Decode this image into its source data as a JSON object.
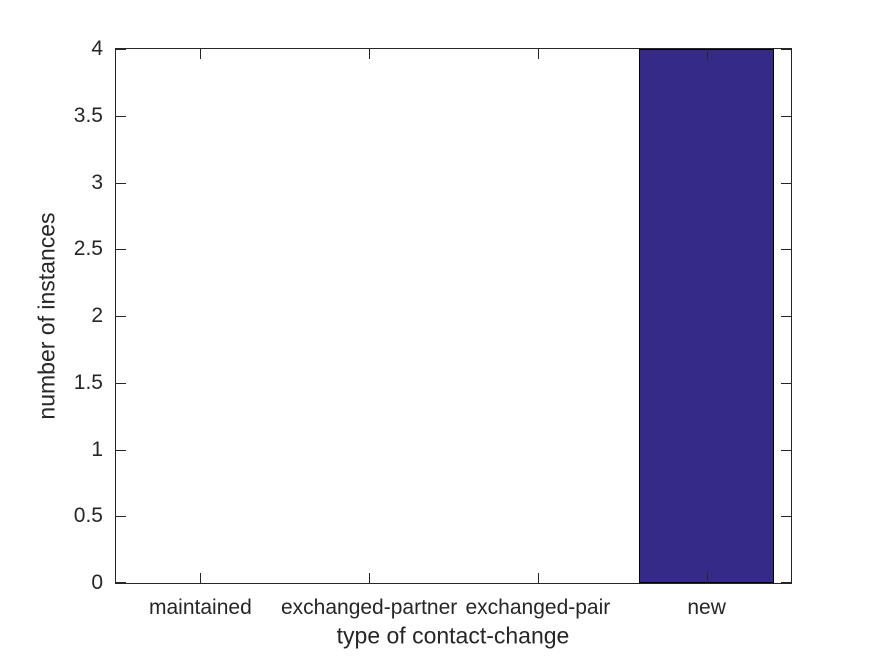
{
  "chart_data": {
    "type": "bar",
    "categories": [
      "maintained",
      "exchanged-partner",
      "exchanged-pair",
      "new"
    ],
    "values": [
      0,
      0,
      0,
      4
    ],
    "title": "",
    "xlabel": "type of contact-change",
    "ylabel": "number of instances",
    "ylim": [
      0,
      4
    ],
    "yticks": [
      0,
      0.5,
      1,
      1.5,
      2,
      2.5,
      3,
      3.5,
      4
    ],
    "ytick_labels": [
      "0",
      "0.5",
      "1",
      "1.5",
      "2",
      "2.5",
      "3",
      "3.5",
      "4"
    ],
    "bar_width_fraction": 0.8,
    "bar_color": "#352A87",
    "bar_edge_color": "#000000",
    "axis_color": "#262626",
    "text_color": "#262626",
    "background_color": "#ffffff",
    "grid": false,
    "legend": null
  }
}
